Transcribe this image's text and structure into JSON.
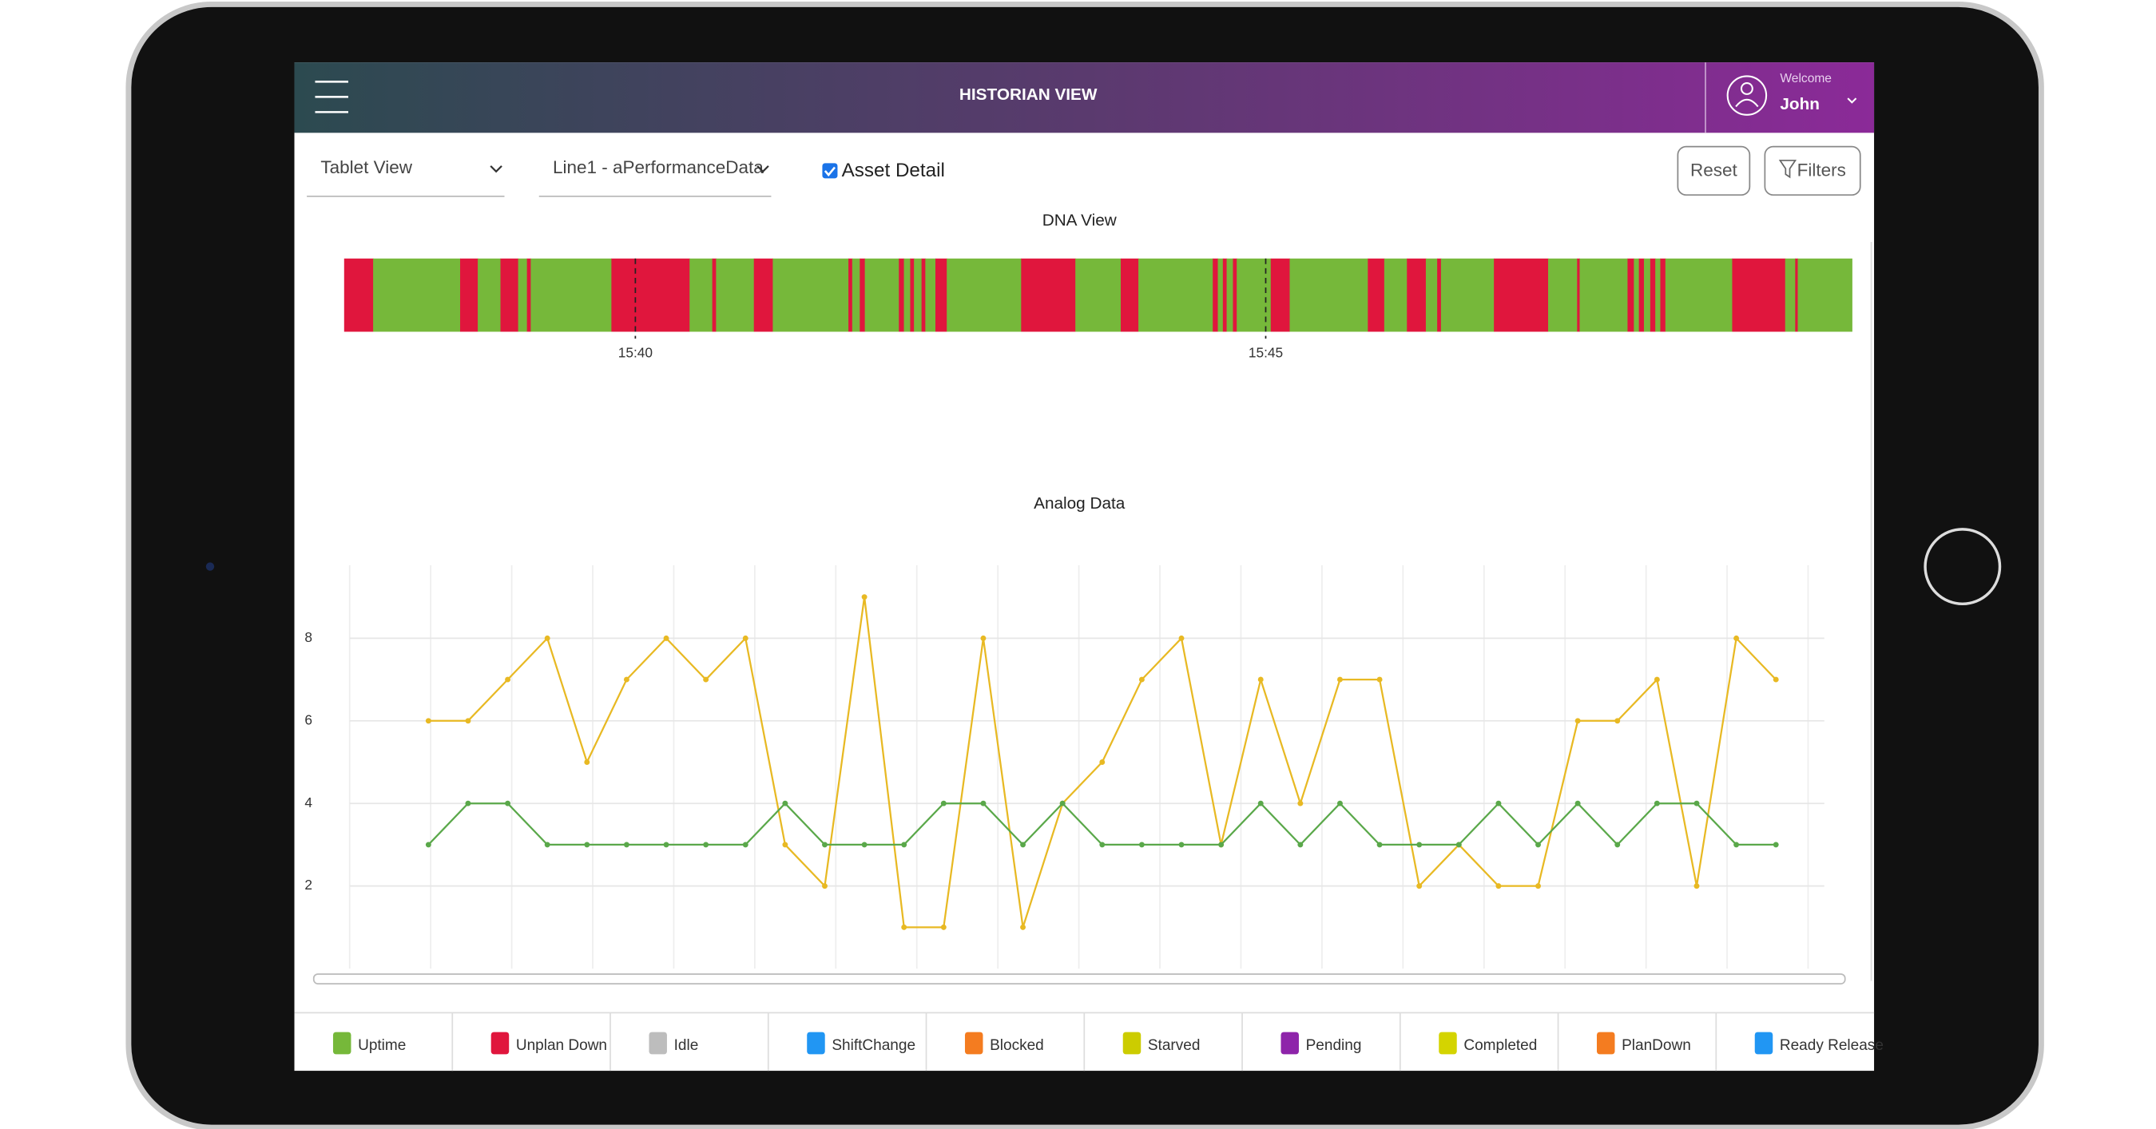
{
  "header": {
    "title": "HISTORIAN VIEW",
    "welcome": "Welcome",
    "user": "John"
  },
  "toolbar": {
    "view_select": "Tablet View",
    "data_select": "Line1 - aPerformanceData",
    "checkbox": "Asset Detail",
    "buttons": [
      "Reset",
      "Filters"
    ]
  },
  "chart_data": [
    {
      "type": "timeline",
      "title": "DNA View",
      "boundaries": [
        37.69,
        37.92,
        38.61,
        38.75,
        38.93,
        39.07,
        39.14,
        39.17,
        39.81,
        40.43,
        40.61,
        40.64,
        40.94,
        41.09,
        41.69,
        41.72,
        41.78,
        41.82,
        42.09,
        42.13,
        42.18,
        42.21,
        42.27,
        42.3,
        42.38,
        42.47,
        43.06,
        43.49,
        43.85,
        43.99,
        44.58,
        44.62,
        44.66,
        44.69,
        44.74,
        44.77,
        45.04,
        45.19,
        45.81,
        45.94,
        46.12,
        46.27,
        46.36,
        46.39,
        46.81,
        47.24,
        47.47,
        47.49,
        47.87,
        47.92,
        47.96,
        48.0,
        48.05,
        48.09,
        48.13,
        48.17,
        48.7,
        49.12,
        49.2,
        49.22,
        49.65
      ],
      "colors": [
        "#e0163d",
        "#76b83a",
        "#e0163d",
        "#76b83a",
        "#e0163d",
        "#76b83a",
        "#e0163d",
        "#76b83a",
        "#e0163d",
        "#76b83a",
        "#e0163d",
        "#76b83a",
        "#e0163d",
        "#76b83a",
        "#e0163d",
        "#76b83a",
        "#e0163d",
        "#76b83a",
        "#e0163d",
        "#76b83a",
        "#e0163d",
        "#76b83a",
        "#e0163d",
        "#76b83a",
        "#e0163d",
        "#76b83a",
        "#e0163d",
        "#76b83a",
        "#e0163d",
        "#76b83a",
        "#e0163d",
        "#76b83a",
        "#e0163d",
        "#76b83a",
        "#e0163d",
        "#76b83a",
        "#e0163d",
        "#76b83a",
        "#e0163d",
        "#76b83a",
        "#e0163d",
        "#76b83a",
        "#e0163d",
        "#76b83a",
        "#e0163d",
        "#76b83a",
        "#e0163d",
        "#76b83a",
        "#e0163d",
        "#76b83a",
        "#e0163d",
        "#76b83a",
        "#e0163d",
        "#76b83a",
        "#e0163d",
        "#76b83a",
        "#e0163d",
        "#76b83a",
        "#e0163d",
        "#76b83a"
      ],
      "xlim": [
        37.69,
        49.65
      ],
      "xticks": [
        {
          "value": 40,
          "label": "15:40"
        },
        {
          "value": 45,
          "label": "15:45"
        }
      ]
    },
    {
      "type": "line",
      "title": "Analog Data",
      "categories": [
        null,
        null,
        null,
        null,
        null,
        null,
        null,
        null,
        null,
        null,
        null,
        null,
        null,
        null,
        null,
        null,
        null,
        null,
        null,
        null,
        null,
        null,
        null,
        null,
        null,
        null,
        null,
        null,
        null,
        null,
        null,
        null,
        null,
        null,
        null
      ],
      "series": [
        {
          "color": "#e8b923",
          "values": [
            6,
            6,
            7,
            8,
            5,
            7,
            8,
            7,
            8,
            3,
            2,
            9,
            1,
            1,
            8,
            1,
            4,
            5,
            7,
            8,
            3,
            7,
            4,
            7,
            7,
            2,
            3,
            2,
            2,
            6,
            6,
            7,
            2,
            8,
            7
          ]
        },
        {
          "color": "#5aa84a",
          "values": [
            3,
            4,
            4,
            3,
            3,
            3,
            3,
            3,
            3,
            4,
            3,
            3,
            3,
            4,
            4,
            3,
            4,
            3,
            3,
            3,
            3,
            4,
            3,
            4,
            3,
            3,
            3,
            4,
            3,
            4,
            3,
            4,
            4,
            3,
            3
          ]
        }
      ],
      "ylim": [
        0,
        9.77
      ],
      "yticks": [
        2,
        4,
        6,
        8
      ],
      "grid": true
    }
  ],
  "legend": [
    {
      "label": "Uptime",
      "color": "#76b83a"
    },
    {
      "label": "Unplan Down",
      "color": "#e0163d"
    },
    {
      "label": "Idle",
      "color": "#bdbdbd"
    },
    {
      "label": "ShiftChange",
      "color": "#2196f3"
    },
    {
      "label": "Blocked",
      "color": "#f47c20"
    },
    {
      "label": "Starved",
      "color": "#cccc00"
    },
    {
      "label": "Pending",
      "color": "#8e24aa"
    },
    {
      "label": "Completed",
      "color": "#d4d400"
    },
    {
      "label": "PlanDown",
      "color": "#f47c20"
    },
    {
      "label": "Ready Release",
      "color": "#2196f3"
    }
  ]
}
